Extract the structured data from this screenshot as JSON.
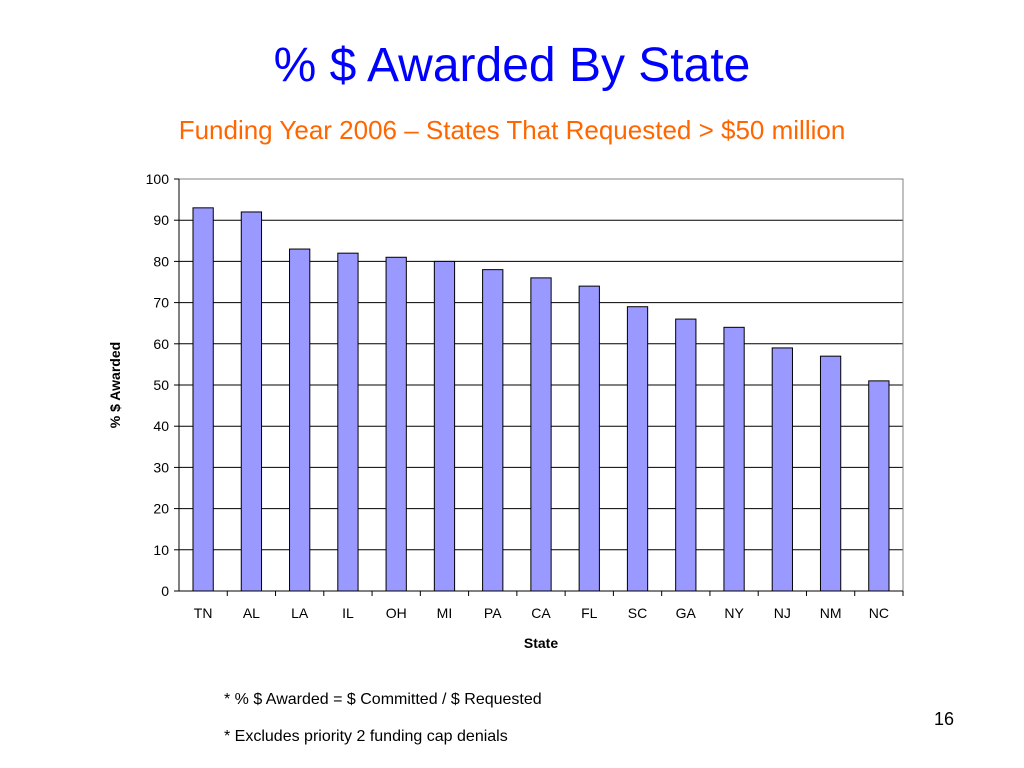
{
  "slide": {
    "title": "% $ Awarded By State",
    "subtitle": "Funding Year 2006 – States That Requested > $50 million",
    "notes": [
      "* % $ Awarded = $ Committed / $ Requested",
      "* Excludes priority 2 funding cap denials"
    ],
    "page_number": "16"
  },
  "colors": {
    "title": "#0000ff",
    "subtitle": "#ff6600",
    "bar_fill": "#9999ff",
    "bar_stroke": "#000000"
  },
  "chart_data": {
    "type": "bar",
    "categories": [
      "TN",
      "AL",
      "LA",
      "IL",
      "OH",
      "MI",
      "PA",
      "CA",
      "FL",
      "SC",
      "GA",
      "NY",
      "NJ",
      "NM",
      "NC"
    ],
    "values": [
      93,
      92,
      83,
      82,
      81,
      80,
      78,
      76,
      74,
      69,
      66,
      64,
      59,
      57,
      51
    ],
    "xlabel": "State",
    "ylabel": "% $ Awarded",
    "ylim": [
      0,
      100
    ],
    "yticks": [
      0,
      10,
      20,
      30,
      40,
      50,
      60,
      70,
      80,
      90,
      100
    ],
    "grid": true,
    "legend": "none"
  }
}
